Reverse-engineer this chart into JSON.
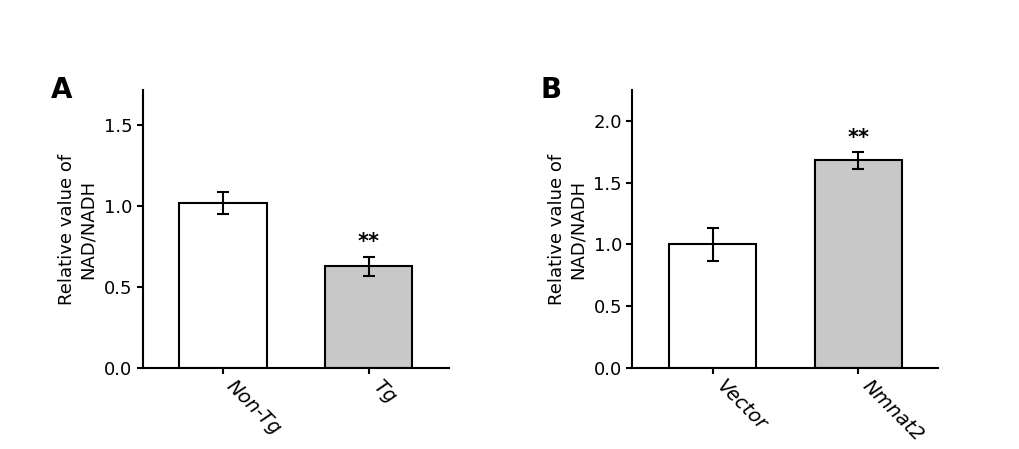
{
  "panel_A": {
    "categories": [
      "Non-Tg",
      "Tg"
    ],
    "values": [
      1.02,
      0.63
    ],
    "errors": [
      0.07,
      0.06
    ],
    "bar_colors": [
      "#ffffff",
      "#c8c8c8"
    ],
    "bar_edgecolor": "#000000",
    "ylabel": "Relative value of\nNAD/NADH",
    "ylim": [
      0,
      1.72
    ],
    "yticks": [
      0,
      0.5,
      1.0,
      1.5
    ],
    "panel_label": "A",
    "sig_labels": [
      "",
      "**"
    ],
    "bar_width": 0.6
  },
  "panel_B": {
    "categories": [
      "Vector",
      "Nmnat2"
    ],
    "values": [
      1.0,
      1.68
    ],
    "errors": [
      0.13,
      0.07
    ],
    "bar_colors": [
      "#ffffff",
      "#c8c8c8"
    ],
    "bar_edgecolor": "#000000",
    "ylabel": "Relative value of\nNAD/NADH",
    "ylim": [
      0,
      2.25
    ],
    "yticks": [
      0,
      0.5,
      1.0,
      1.5,
      2.0
    ],
    "panel_label": "B",
    "sig_labels": [
      "",
      "**"
    ],
    "bar_width": 0.6
  },
  "tick_fontsize": 13,
  "ylabel_fontsize": 13,
  "panel_label_fontsize": 20,
  "sig_fontsize": 15,
  "xtick_rotation": -45,
  "xtick_fontsize": 14
}
